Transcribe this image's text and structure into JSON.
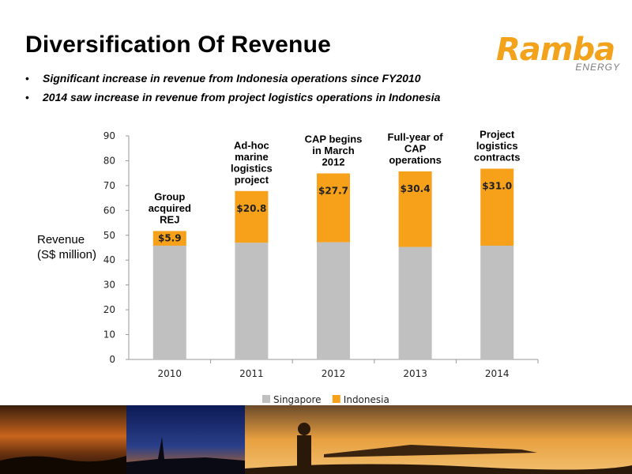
{
  "slide": {
    "title": "Diversification Of Revenue",
    "logo": {
      "main": "Ramba",
      "sub": "ENERGY",
      "color": "#f3a21c"
    },
    "bullets": [
      "Significant increase in revenue from Indonesia operations since FY2010",
      "2014 saw increase in revenue from project logistics operations in Indonesia"
    ],
    "bullet_marker": "•",
    "photo_strip": [
      "sunset-silhouette",
      "night-industrial",
      "sunset-worker-shelter"
    ]
  },
  "chart_data": {
    "type": "bar",
    "stacked": true,
    "categories": [
      "2010",
      "2011",
      "2012",
      "2013",
      "2014"
    ],
    "series": [
      {
        "name": "Singapore",
        "color": "#c0c0c0",
        "values": [
          45.8,
          47.0,
          47.2,
          45.3,
          45.8
        ]
      },
      {
        "name": "Indonesia",
        "color": "#f7a11a",
        "values": [
          5.9,
          20.8,
          27.7,
          30.4,
          31.0
        ]
      }
    ],
    "data_labels": [
      "$5.9",
      "$20.8",
      "$27.7",
      "$30.4",
      "$31.0"
    ],
    "annotations": [
      [
        "Group",
        "acquired",
        "REJ"
      ],
      [
        "Ad-hoc",
        "marine",
        "logistics",
        "project"
      ],
      [
        "CAP begins",
        "in March",
        "2012"
      ],
      [
        "Full-year of",
        "CAP",
        "operations"
      ],
      [
        "Project",
        "logistics",
        "contracts"
      ]
    ],
    "ylabel": "Revenue\n(S$ million)",
    "ylabel_lines": [
      "Revenue",
      "(S$ million)"
    ],
    "ylim": [
      0,
      90
    ],
    "yticks": [
      0,
      10,
      20,
      30,
      40,
      50,
      60,
      70,
      80,
      90
    ],
    "grid": false,
    "legend": {
      "position": "bottom",
      "entries": [
        "Singapore",
        "Indonesia"
      ]
    }
  }
}
